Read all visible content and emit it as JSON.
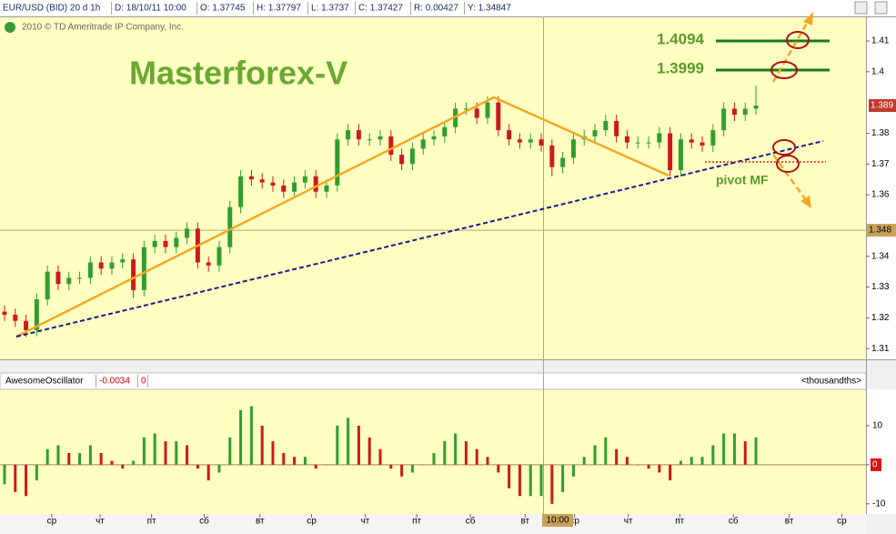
{
  "header": {
    "symbol": "EUR/USD (BID) 20 d 1h",
    "date": "D: 18/10/11 10:00",
    "open": "O: 1.37745",
    "high": "H: 1.37797",
    "low": "L: 1.3737",
    "close": "C: 1.37427",
    "range": "R: 0.00427",
    "y": "Y: 1.34847",
    "copyright": "2010 © TD Ameritrade IP Company, Inc."
  },
  "annotations": {
    "title": "Masterforex-V",
    "level_1": "1.4094",
    "level_2": "1.3999",
    "pivot": "pivot MF"
  },
  "chart_data": [
    {
      "type": "candlestick",
      "xlim": [
        -0.42,
        80.25
      ],
      "ylim": [
        1.3065,
        1.418
      ],
      "yticks": [
        1.41,
        1.4,
        1.38,
        1.37,
        1.36,
        1.34,
        1.33,
        1.32,
        1.31
      ],
      "up_color": "#2f9e2f",
      "down_color": "#cc1a1a",
      "crosshair": {
        "price": 1.34847,
        "label": "1.348",
        "time_label": "10:00"
      },
      "last_label": "1.389",
      "open": [
        1.322,
        1.321,
        1.319,
        1.316,
        1.326,
        1.335,
        1.331,
        1.333,
        1.333,
        1.338,
        1.336,
        1.338,
        1.339,
        1.329,
        1.343,
        1.345,
        1.343,
        1.346,
        1.349,
        1.338,
        1.337,
        1.343,
        1.356,
        1.366,
        1.365,
        1.364,
        1.363,
        1.361,
        1.364,
        1.366,
        1.361,
        1.363,
        1.378,
        1.381,
        1.378,
        1.378,
        1.379,
        1.373,
        1.37,
        1.375,
        1.378,
        1.379,
        1.382,
        1.388,
        1.388,
        1.385,
        1.39,
        1.381,
        1.378,
        1.377,
        1.378,
        1.376,
        1.369,
        1.372,
        1.378,
        1.379,
        1.381,
        1.384,
        1.379,
        1.377,
        1.377,
        1.377,
        1.38,
        1.368,
        1.378,
        1.377,
        1.376,
        1.381,
        1.388,
        1.386,
        1.388
      ],
      "high": [
        1.324,
        1.323,
        1.321,
        1.328,
        1.337,
        1.337,
        1.335,
        1.335,
        1.34,
        1.34,
        1.34,
        1.341,
        1.341,
        1.345,
        1.347,
        1.347,
        1.348,
        1.351,
        1.351,
        1.34,
        1.345,
        1.358,
        1.368,
        1.368,
        1.367,
        1.366,
        1.365,
        1.366,
        1.368,
        1.368,
        1.365,
        1.38,
        1.383,
        1.383,
        1.38,
        1.381,
        1.381,
        1.375,
        1.377,
        1.38,
        1.381,
        1.384,
        1.39,
        1.39,
        1.39,
        1.392,
        1.392,
        1.383,
        1.38,
        1.38,
        1.38,
        1.378,
        1.374,
        1.38,
        1.381,
        1.383,
        1.386,
        1.386,
        1.381,
        1.379,
        1.379,
        1.382,
        1.382,
        1.38,
        1.38,
        1.379,
        1.383,
        1.39,
        1.39,
        1.39,
        1.3955
      ],
      "low": [
        1.319,
        1.317,
        1.3138,
        1.314,
        1.324,
        1.329,
        1.329,
        1.331,
        1.331,
        1.334,
        1.334,
        1.336,
        1.3265,
        1.327,
        1.341,
        1.341,
        1.341,
        1.344,
        1.336,
        1.335,
        1.335,
        1.341,
        1.354,
        1.363,
        1.362,
        1.361,
        1.359,
        1.359,
        1.362,
        1.359,
        1.359,
        1.361,
        1.376,
        1.376,
        1.376,
        1.376,
        1.371,
        1.368,
        1.368,
        1.373,
        1.376,
        1.377,
        1.38,
        1.386,
        1.383,
        1.383,
        1.379,
        1.376,
        1.375,
        1.375,
        1.374,
        1.366,
        1.367,
        1.37,
        1.376,
        1.377,
        1.379,
        1.377,
        1.375,
        1.375,
        1.375,
        1.375,
        1.366,
        1.366,
        1.375,
        1.374,
        1.374,
        1.379,
        1.384,
        1.384,
        1.386
      ],
      "close": [
        1.321,
        1.319,
        1.316,
        1.326,
        1.335,
        1.331,
        1.333,
        1.333,
        1.338,
        1.336,
        1.338,
        1.339,
        1.329,
        1.343,
        1.345,
        1.343,
        1.346,
        1.349,
        1.338,
        1.337,
        1.343,
        1.356,
        1.366,
        1.365,
        1.364,
        1.363,
        1.361,
        1.364,
        1.366,
        1.361,
        1.363,
        1.378,
        1.381,
        1.378,
        1.378,
        1.379,
        1.373,
        1.37,
        1.375,
        1.378,
        1.379,
        1.382,
        1.388,
        1.388,
        1.385,
        1.39,
        1.381,
        1.378,
        1.377,
        1.378,
        1.376,
        1.369,
        1.372,
        1.378,
        1.379,
        1.381,
        1.384,
        1.379,
        1.377,
        1.377,
        1.377,
        1.38,
        1.368,
        1.378,
        1.377,
        1.376,
        1.381,
        1.388,
        1.386,
        1.388,
        1.389
      ]
    },
    {
      "type": "bar",
      "name": "AwesomeOscillator",
      "current_value": -0.0034,
      "zero_value": 0,
      "unit_label": "<thousandths>",
      "xlim": [
        -0.42,
        80.25
      ],
      "ylim": [
        -12.6,
        19.3
      ],
      "yticks": [
        10,
        0,
        -10
      ],
      "up_color": "#2f9e2f",
      "down_color": "#cc1a1a",
      "xticks": [
        {
          "value": 4.4,
          "label": "ср"
        },
        {
          "value": 8.9,
          "label": "чт"
        },
        {
          "value": 13.7,
          "label": "пт"
        },
        {
          "value": 18.6,
          "label": "сб"
        },
        {
          "value": 23.8,
          "label": "вт"
        },
        {
          "value": 28.6,
          "label": "ср"
        },
        {
          "value": 33.6,
          "label": "чт"
        },
        {
          "value": 38.4,
          "label": "пт"
        },
        {
          "value": 43.4,
          "label": "сб"
        },
        {
          "value": 48.5,
          "label": "вт"
        },
        {
          "value": 53.1,
          "label": "ср"
        },
        {
          "value": 58.1,
          "label": "чт"
        },
        {
          "value": 62.9,
          "label": "пт"
        },
        {
          "value": 67.9,
          "label": "сб"
        },
        {
          "value": 73.1,
          "label": "вт"
        },
        {
          "value": 78,
          "label": "ср"
        }
      ],
      "values": [
        -5,
        -7,
        -8,
        -4,
        4,
        5,
        3,
        3,
        5,
        3,
        1,
        -1,
        1,
        7,
        8,
        6,
        6,
        5,
        -1,
        -4,
        -2,
        7,
        14,
        15,
        10,
        6,
        3,
        2,
        2,
        -1,
        0,
        10,
        12,
        10,
        7,
        4,
        -1,
        -3,
        -2,
        0,
        3,
        6,
        8,
        6,
        4,
        2,
        -2,
        -6,
        -8,
        -8,
        -8,
        -10,
        -7,
        -3,
        2,
        5,
        7,
        4,
        2,
        0,
        -1,
        -2,
        -4,
        1,
        2,
        2,
        5,
        8,
        8,
        6,
        7
      ]
    }
  ]
}
